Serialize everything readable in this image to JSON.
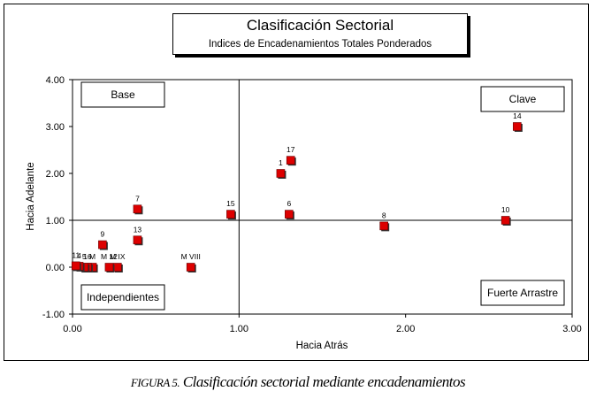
{
  "caption": {
    "label": "FIGURA 5.",
    "text": "Clasificación sectorial mediante encadenamientos"
  },
  "chart_data": {
    "type": "scatter",
    "title": "Clasificación Sectorial",
    "subtitle": "Indices de Encadenamientos Totales Ponderados",
    "xlabel": "Hacia Atrás",
    "ylabel": "Hacia Adelante",
    "xlim": [
      0.0,
      3.0
    ],
    "ylim": [
      -1.0,
      4.0
    ],
    "x_ticks": [
      "0.00",
      "1.00",
      "2.00",
      "3.00"
    ],
    "y_ticks": [
      "4.00",
      "3.00",
      "2.00",
      "1.00",
      "0.00",
      "-1.00"
    ],
    "reference_lines": {
      "x": 1.0,
      "y": 1.0
    },
    "quadrant_labels": {
      "top_left": "Base",
      "top_right": "Clave",
      "bottom_left": "Independientes",
      "bottom_right": "Fuerte Arrastre"
    },
    "marker_color": "#dd0000",
    "points": [
      {
        "label": "14",
        "x": 2.67,
        "y": 3.0
      },
      {
        "label": "17",
        "x": 1.31,
        "y": 2.28
      },
      {
        "label": "1",
        "x": 1.25,
        "y": 2.0
      },
      {
        "label": "7",
        "x": 0.39,
        "y": 1.24
      },
      {
        "label": "15",
        "x": 0.95,
        "y": 1.13
      },
      {
        "label": "6",
        "x": 1.3,
        "y": 1.13
      },
      {
        "label": "10",
        "x": 2.6,
        "y": 1.0
      },
      {
        "label": "8",
        "x": 1.87,
        "y": 0.88
      },
      {
        "label": "9",
        "x": 0.18,
        "y": 0.48
      },
      {
        "label": "13",
        "x": 0.39,
        "y": 0.58
      },
      {
        "label": "M VIII",
        "x": 0.71,
        "y": 0.0
      },
      {
        "label": "M IX",
        "x": 0.27,
        "y": 0.0
      },
      {
        "label": "M 12",
        "x": 0.22,
        "y": 0.0
      },
      {
        "label": "M",
        "x": 0.12,
        "y": 0.0
      },
      {
        "label": "16",
        "x": 0.09,
        "y": 0.0
      },
      {
        "label": "5",
        "x": 0.07,
        "y": 0.0
      },
      {
        "label": "4",
        "x": 0.04,
        "y": 0.02
      },
      {
        "label": "11",
        "x": 0.02,
        "y": 0.03
      }
    ]
  }
}
